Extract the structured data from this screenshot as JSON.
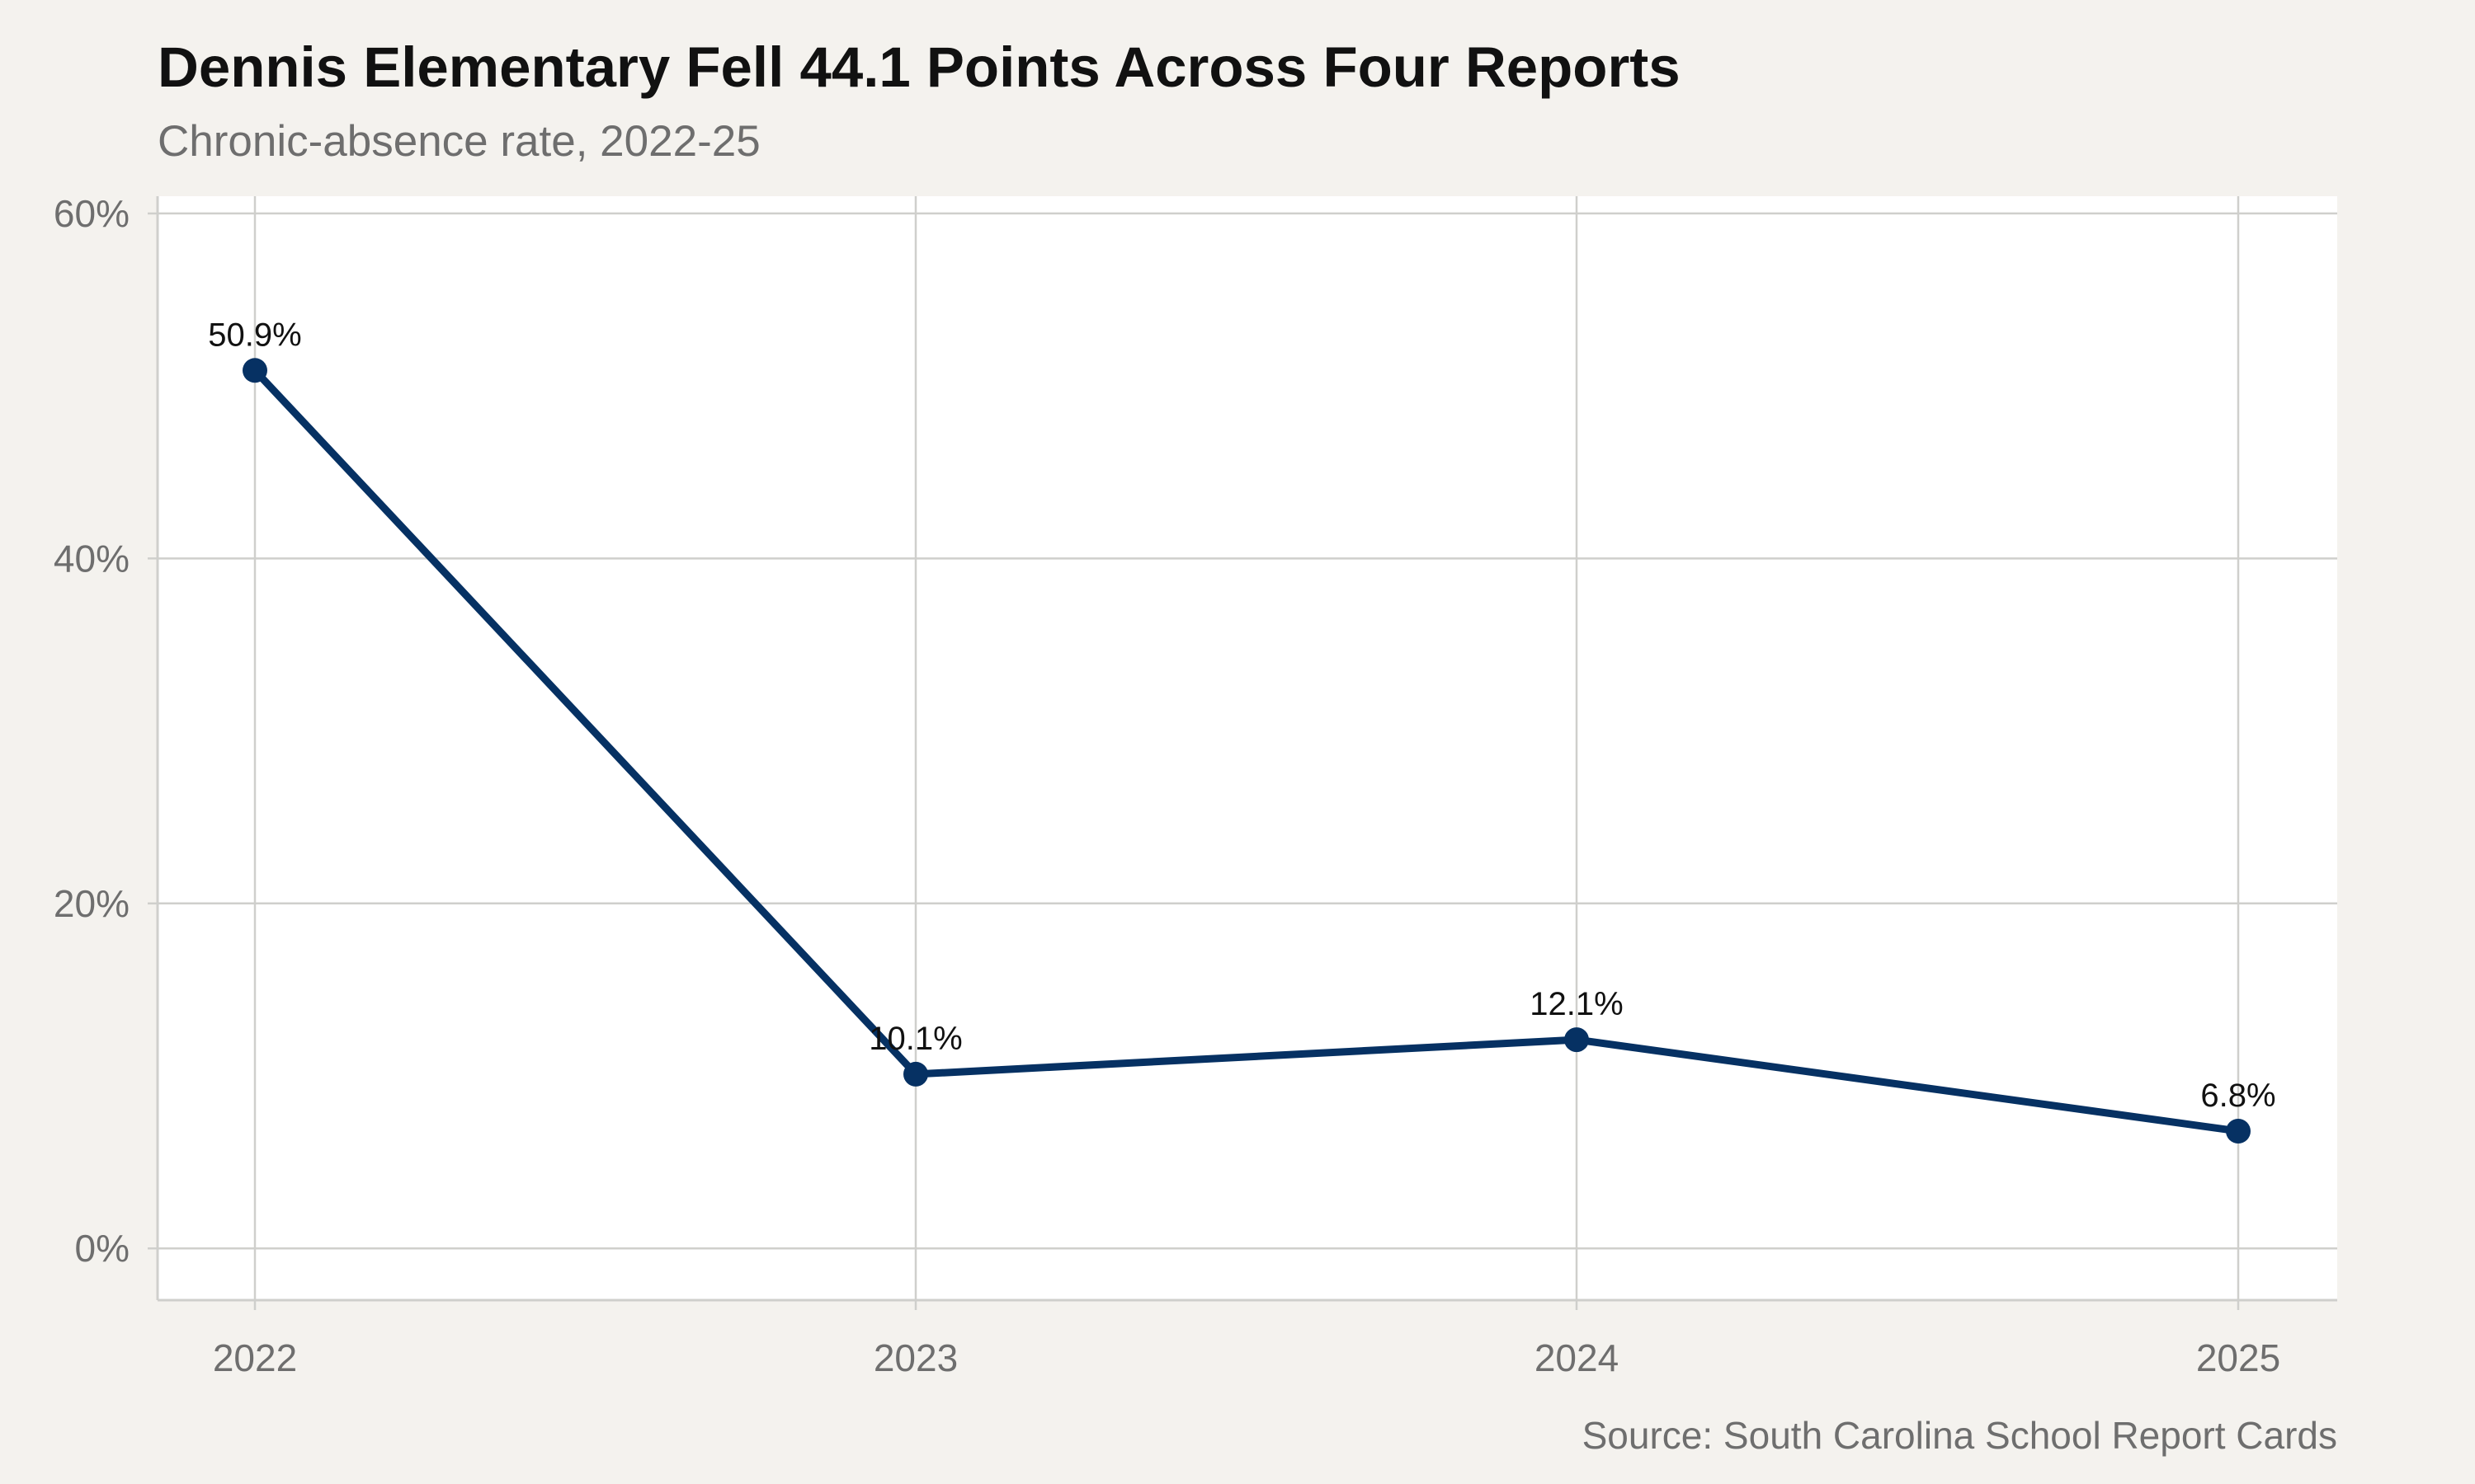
{
  "title": "Dennis Elementary Fell 44.1 Points Across Four Reports",
  "subtitle": "Chronic-absence rate, 2022-25",
  "source": "Source: South Carolina School Report Cards",
  "colors": {
    "background": "#f4f2ee",
    "panel": "#ffffff",
    "grid": "#cfcfcc",
    "series": "#063163"
  },
  "chart_data": {
    "type": "line",
    "title": "Dennis Elementary Fell 44.1 Points Across Four Reports",
    "subtitle": "Chronic-absence rate, 2022-25",
    "xlabel": "",
    "ylabel": "",
    "categories": [
      "2022",
      "2023",
      "2024",
      "2025"
    ],
    "series": [
      {
        "values": [
          50.9,
          10.1,
          12.1,
          6.8
        ],
        "labels": [
          "50.9%",
          "10.1%",
          "12.1%",
          "6.8%"
        ]
      }
    ],
    "ylim": [
      -3,
      61
    ],
    "yticks": [
      0,
      20,
      40,
      60
    ],
    "ytick_labels": [
      "0%",
      "20%",
      "40%",
      "60%"
    ],
    "grid": true,
    "legend": "none"
  }
}
